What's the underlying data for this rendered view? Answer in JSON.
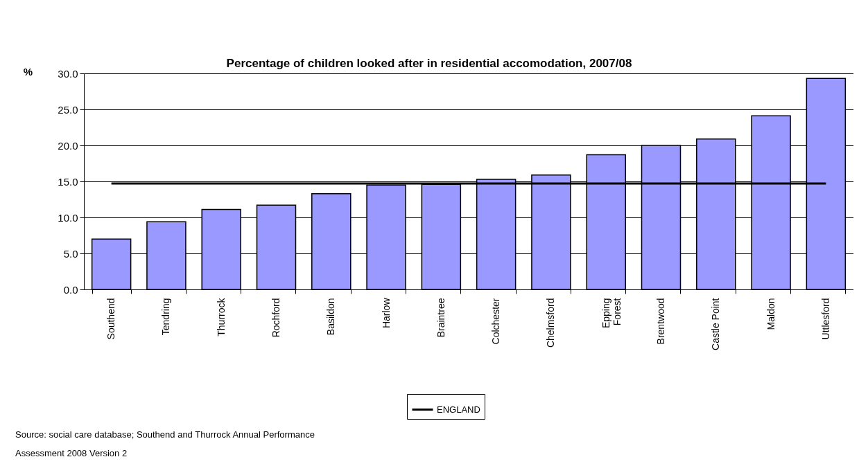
{
  "chart_data": {
    "type": "bar",
    "title": "Percentage of children looked after in residential accomodation, 2007/08",
    "ylabel": "%",
    "categories": [
      "Southend",
      "Tendring",
      "Thurrock",
      "Rochford",
      "Basildon",
      "Harlow",
      "Braintree",
      "Colchester",
      "Chelmsford",
      "Epping Forest",
      "Brentwood",
      "Castle Point",
      "Maldon",
      "Uttlesford"
    ],
    "series": [
      {
        "color": "#9999ff",
        "values": [
          7.0,
          9.4,
          11.1,
          11.7,
          13.3,
          14.5,
          14.6,
          15.3,
          15.9,
          18.7,
          20.0,
          20.9,
          24.1,
          29.3
        ]
      },
      {
        "type": "line",
        "name": "ENGLAND",
        "color": "#000000",
        "values": [
          14.7,
          14.7,
          14.7,
          14.7,
          14.7,
          14.7,
          14.7,
          14.7,
          14.7,
          14.7,
          14.7,
          14.7,
          14.7,
          14.7
        ]
      }
    ],
    "ylim": [
      0,
      30
    ],
    "yticks": [
      {
        "value": 0,
        "label": "0.0"
      },
      {
        "value": 5,
        "label": "5.0"
      },
      {
        "value": 10,
        "label": "10.0"
      },
      {
        "value": 15,
        "label": "15.0"
      },
      {
        "value": 20,
        "label": "20.0"
      },
      {
        "value": 25,
        "label": "25.0"
      },
      {
        "value": 30,
        "label": "30.0"
      }
    ],
    "grid": "y",
    "legend": "bottom",
    "annotations": [
      "Source: social care database; Southend and Thurrock Annual Performance Assessment 2008 Version 2"
    ]
  }
}
